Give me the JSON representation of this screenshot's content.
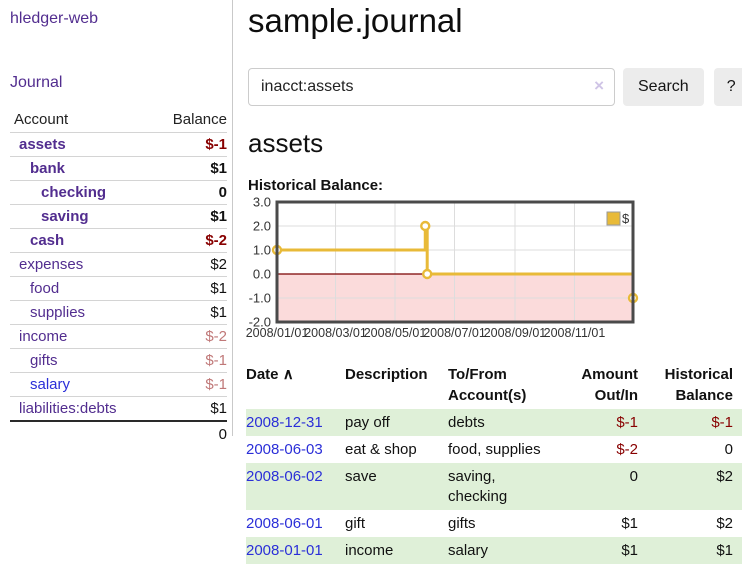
{
  "app": {
    "title": "hledger-web"
  },
  "colors": {
    "visited_link_purple": "#522d8f",
    "unvisited_link_blue": "#2b2fd8",
    "negative_red": "#880000",
    "dim_negative_red": "#c07878",
    "row_stripe_green": "#dff0d8",
    "chart_gold": "#e8ba38"
  },
  "sidebar": {
    "journal_link": "Journal",
    "accounts": {
      "header_account": "Account",
      "header_balance": "Balance",
      "rows": [
        {
          "account": "assets",
          "balance": "$-1",
          "indent": 1,
          "bold": true,
          "neg": true
        },
        {
          "account": "bank",
          "balance": "$1",
          "indent": 2,
          "bold": true
        },
        {
          "account": "checking",
          "balance": "0",
          "indent": 3,
          "bold": true
        },
        {
          "account": "saving",
          "balance": "$1",
          "indent": 3,
          "bold": true
        },
        {
          "account": "cash",
          "balance": "$-2",
          "indent": 2,
          "bold": true,
          "neg": true
        },
        {
          "account": "expenses",
          "balance": "$2",
          "indent": 1
        },
        {
          "account": "food",
          "balance": "$1",
          "indent": 2
        },
        {
          "account": "supplies",
          "balance": "$1",
          "indent": 2
        },
        {
          "account": "income",
          "balance": "$-2",
          "indent": 1,
          "dim": true
        },
        {
          "account": "gifts",
          "balance": "$-1",
          "indent": 2,
          "dim": true
        },
        {
          "account": "salary",
          "balance": "$-1",
          "indent": 2,
          "dim": true,
          "unvisited": true
        },
        {
          "account": "liabilities:debts",
          "balance": "$1",
          "indent": 1
        }
      ],
      "total": "0"
    }
  },
  "main": {
    "title": "sample.journal",
    "search": {
      "value": "inacct:assets",
      "clear_icon": "×",
      "search_label": "Search",
      "help_label": "?"
    },
    "register_heading": "assets",
    "chart_heading": "Historical Balance:"
  },
  "chart_data": {
    "type": "line",
    "step": true,
    "title": "Historical Balance:",
    "x_unit": "days since 2008-01-01",
    "xlim": [
      0,
      365
    ],
    "ylim": [
      -2,
      3
    ],
    "grid": true,
    "legend": {
      "label": "$",
      "position": "top-right"
    },
    "series": [
      {
        "name": "$",
        "color": "#e8ba38",
        "points": [
          {
            "date": "2008-01-01",
            "x": 0,
            "y": 1
          },
          {
            "date": "2008-06-01",
            "x": 152,
            "y": 2
          },
          {
            "date": "2008-06-03",
            "x": 154,
            "y": 0
          },
          {
            "date": "2008-12-31",
            "x": 365,
            "y": -1
          }
        ]
      }
    ],
    "x_ticks": [
      {
        "label": "2008/01/01",
        "v": 0
      },
      {
        "label": "2008/03/01",
        "v": 60
      },
      {
        "label": "2008/05/01",
        "v": 121
      },
      {
        "label": "2008/07/01",
        "v": 182
      },
      {
        "label": "2008/09/01",
        "v": 244
      },
      {
        "label": "2008/11/01",
        "v": 305
      }
    ],
    "y_ticks": [
      {
        "label": "3.0",
        "v": 3
      },
      {
        "label": "2.0",
        "v": 2
      },
      {
        "label": "1.0",
        "v": 1
      },
      {
        "label": "0.0",
        "v": 0
      },
      {
        "label": "-1.0",
        "v": -1
      },
      {
        "label": "-2.0",
        "v": -2
      }
    ],
    "colors": {
      "line": "#e8ba38",
      "marker_fill": "#ffffff",
      "negative_region": "#fbdbdb",
      "zero_line": "#7a0000",
      "grid": "#dddddd",
      "frame": "#4a4a4a",
      "legend_border": "#999999"
    }
  },
  "transactions": {
    "headers": {
      "date": "Date",
      "sort_icon": "∧",
      "description": "Description",
      "tofrom": "To/From Account(s)",
      "amount": "Amount Out/In",
      "balance": "Historical Balance"
    },
    "rows": [
      {
        "date": "2008-12-31",
        "description": "pay off",
        "accounts": "debts",
        "amount": "$-1",
        "balance": "$-1"
      },
      {
        "date": "2008-06-03",
        "description": "eat & shop",
        "accounts": "food, supplies",
        "amount": "$-2",
        "balance": "0"
      },
      {
        "date": "2008-06-02",
        "description": "save",
        "accounts": "saving, checking",
        "amount": "0",
        "balance": "$2"
      },
      {
        "date": "2008-06-01",
        "description": "gift",
        "accounts": "gifts",
        "amount": "$1",
        "balance": "$2"
      },
      {
        "date": "2008-01-01",
        "description": "income",
        "accounts": "salary",
        "amount": "$1",
        "balance": "$1"
      }
    ]
  }
}
